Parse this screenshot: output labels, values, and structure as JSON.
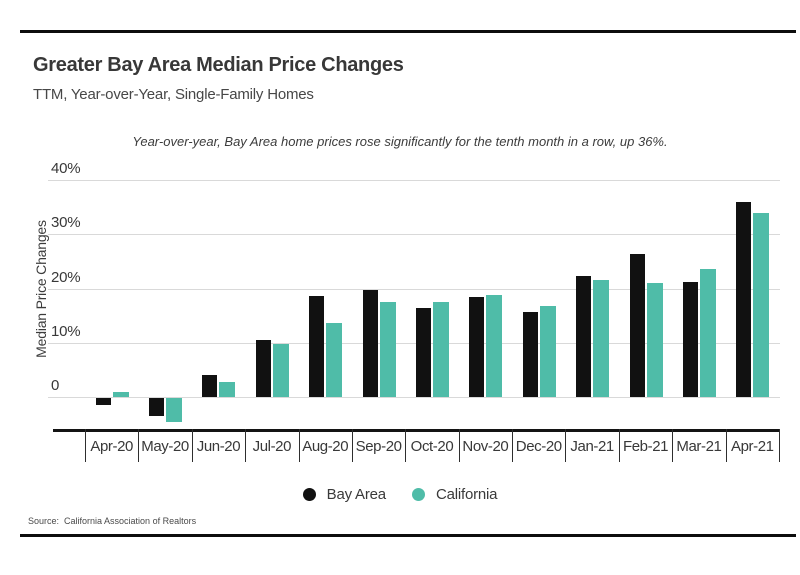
{
  "header": {
    "title": "Greater Bay Area Median Price Changes",
    "subtitle": "TTM, Year-over-Year, Single-Family Homes"
  },
  "annotation": "Year-over-year, Bay Area home prices rose significantly for the tenth month in a row, up 36%.",
  "chart_data": {
    "type": "bar",
    "title": "Greater Bay Area Median Price Changes",
    "subtitle": "TTM, Year-over-Year, Single-Family Homes",
    "ylabel": "Median Price Changes",
    "xlabel": "",
    "categories": [
      "Apr-20",
      "May-20",
      "Jun-20",
      "Jul-20",
      "Aug-20",
      "Sep-20",
      "Oct-20",
      "Nov-20",
      "Dec-20",
      "Jan-21",
      "Feb-21",
      "Mar-21",
      "Apr-21"
    ],
    "series": [
      {
        "name": "Bay Area",
        "color": "#111111",
        "values": [
          -1.3,
          -3.3,
          4.0,
          10.6,
          18.6,
          19.7,
          16.4,
          18.5,
          15.6,
          22.3,
          26.3,
          21.2,
          36.0
        ]
      },
      {
        "name": "California",
        "color": "#4fbca8",
        "values": [
          0.9,
          -4.4,
          2.7,
          9.7,
          13.7,
          17.6,
          17.5,
          18.8,
          16.7,
          21.6,
          21.0,
          23.6,
          33.9
        ]
      }
    ],
    "y_ticks": [
      {
        "value": 40,
        "label": "40%"
      },
      {
        "value": 30,
        "label": "30%"
      },
      {
        "value": 20,
        "label": "20%"
      },
      {
        "value": 10,
        "label": "10%"
      },
      {
        "value": 0,
        "label": "0"
      }
    ],
    "ylim": [
      -6,
      40
    ],
    "grid": true,
    "legend_position": "bottom"
  },
  "source": "Source:  California Association of Realtors",
  "colors": {
    "bay_area": "#111111",
    "california": "#4fbca8",
    "gridline": "#d9d9d9",
    "axis": "#141414",
    "text": "#3a3a3a"
  }
}
